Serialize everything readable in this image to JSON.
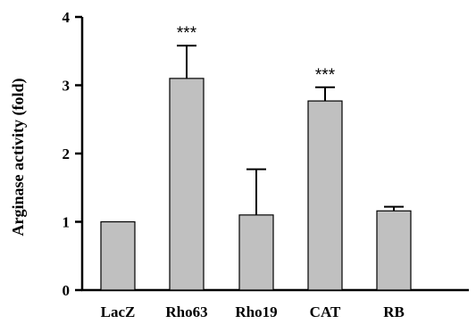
{
  "chart_data": {
    "type": "bar",
    "ylabel": "Arginase activity (fold)",
    "xlabel": "",
    "ylim": [
      0,
      4
    ],
    "yticks": [
      "0",
      "1",
      "2",
      "3",
      "4"
    ],
    "categories": [
      "LacZ",
      "Rho63",
      "Rho19",
      "CAT",
      "RB"
    ],
    "values": [
      1.0,
      3.1,
      1.1,
      2.77,
      1.16
    ],
    "errors": [
      0,
      0.48,
      0.67,
      0.2,
      0.06
    ],
    "significance": [
      "",
      "***",
      "",
      "***",
      ""
    ],
    "bar_color": "#c0c0c0",
    "grid": false
  }
}
